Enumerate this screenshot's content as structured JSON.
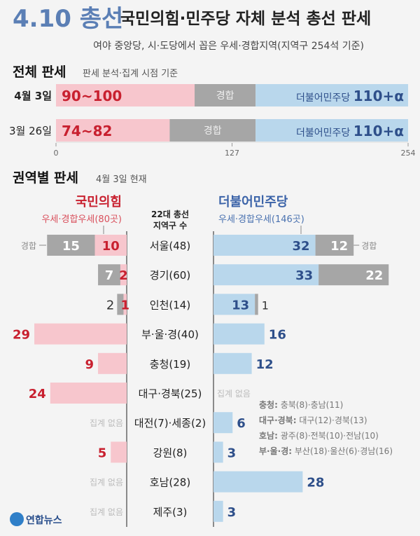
{
  "header": {
    "title_main": "4.10 총선",
    "title_rest": "국민의힘·민주당 자체 분석 총선 판세",
    "subtitle": "여야 중앙당, 시·도당에서 꼽은 우세·경합지역(지역구 254석 기준)"
  },
  "colors": {
    "ppp": "#f7c6cd",
    "ppp_text": "#c8202f",
    "dem": "#b9d7ec",
    "dem_text": "#2e4f8a",
    "toss": "#a6a6a6",
    "title_blue": "#5b7fb5"
  },
  "chart_data": [
    {
      "type": "bar",
      "title": "전체 판세",
      "subtitle": "판세 분석·집계 시점 기준",
      "xlim": [
        0,
        254
      ],
      "ticks": [
        "0",
        "127",
        "254"
      ],
      "rows": [
        {
          "date": "4월 3일",
          "ppp_label": "90~100",
          "ppp_name": "국민의힘",
          "ppp_value": 100,
          "toss_label": "경합",
          "dem_name": "더불어민주당",
          "dem_label": "110+α",
          "dem_value": 110
        },
        {
          "date": "3월 26일",
          "ppp_label": "74~82",
          "ppp_name": "국민의힘",
          "ppp_value": 82,
          "toss_label": "경합",
          "dem_name": "더불어민주당",
          "dem_label": "110+α",
          "dem_value": 110
        }
      ]
    },
    {
      "type": "bar",
      "title": "권역별 판세",
      "subtitle": "4월 3일 현재",
      "left_party": "국민의힘",
      "left_sub": "우세·경합우세(80곳)",
      "right_party": "더불어민주당",
      "right_sub": "우세·경합우세(146곳)",
      "center_header": [
        "22대 총선",
        "지역구 수"
      ],
      "toss_label": "경합",
      "none_label": "집계 없음",
      "regions": [
        {
          "name": "서울(48)",
          "ppp_lead": 10,
          "ppp_toss": 15,
          "dem_lead": 32,
          "dem_toss": 12
        },
        {
          "name": "경기(60)",
          "ppp_lead": 2,
          "ppp_toss": 7,
          "dem_lead": 33,
          "dem_toss": 22
        },
        {
          "name": "인천(14)",
          "ppp_lead": 1,
          "ppp_toss": 2,
          "dem_lead": 13,
          "dem_toss": 1
        },
        {
          "name": "부·울·경(40)",
          "ppp_lead": 29,
          "ppp_toss": 0,
          "dem_lead": 16,
          "dem_toss": 0
        },
        {
          "name": "충청(19)",
          "ppp_lead": 9,
          "ppp_toss": 0,
          "dem_lead": 12,
          "dem_toss": 0
        },
        {
          "name": "대구·경북(25)",
          "ppp_lead": 24,
          "ppp_toss": 0,
          "dem_lead": null,
          "dem_toss": 0
        },
        {
          "name": "대전(7)·세종(2)",
          "ppp_lead": null,
          "ppp_toss": 0,
          "dem_lead": 6,
          "dem_toss": 0
        },
        {
          "name": "강원(8)",
          "ppp_lead": 5,
          "ppp_toss": 0,
          "dem_lead": 3,
          "dem_toss": 0
        },
        {
          "name": "호남(28)",
          "ppp_lead": null,
          "ppp_toss": 0,
          "dem_lead": 28,
          "dem_toss": 0
        },
        {
          "name": "제주(3)",
          "ppp_lead": null,
          "ppp_toss": 0,
          "dem_lead": 3,
          "dem_toss": 0
        }
      ],
      "notes": [
        {
          "key": "충청:",
          "text": " 충북(8)·충남(11)"
        },
        {
          "key": "대구·경북:",
          "text": " 대구(12)·경북(13)"
        },
        {
          "key": "호남:",
          "text": " 광주(8)·전북(10)·전남(10)"
        },
        {
          "key": "부·울·경:",
          "text": " 부산(18)·울산(6)·경남(16)"
        }
      ]
    }
  ],
  "logo": {
    "text": "연합뉴스"
  }
}
